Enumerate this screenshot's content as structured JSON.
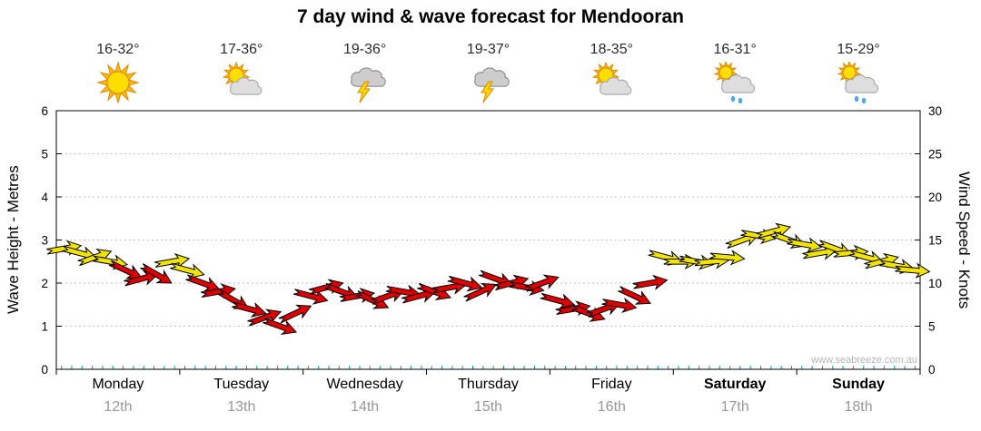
{
  "chart_data": {
    "type": "scatter",
    "subtype": "wind-arrow-forecast",
    "title": "7 day wind & wave forecast for Mendooran",
    "watermark": "www.seabreeze.com.au",
    "left_axis": {
      "label": "Wave Height - Metres",
      "min": 0,
      "max": 6,
      "ticks": [
        0,
        1,
        2,
        3,
        4,
        5,
        6
      ]
    },
    "right_axis": {
      "label": "Wind Speed - Knots",
      "min": 0,
      "max": 30,
      "ticks": [
        0,
        5,
        10,
        15,
        20,
        25,
        30
      ]
    },
    "grid": true,
    "legend": "none",
    "days": [
      {
        "name": "Monday",
        "date": "12th",
        "temp": "16-32°",
        "icon": "sunny",
        "bold": false
      },
      {
        "name": "Tuesday",
        "date": "13th",
        "temp": "17-36°",
        "icon": "partly-cloudy",
        "bold": false
      },
      {
        "name": "Wednesday",
        "date": "14th",
        "temp": "19-36°",
        "icon": "storm",
        "bold": false
      },
      {
        "name": "Thursday",
        "date": "15th",
        "temp": "19-37°",
        "icon": "storm",
        "bold": false
      },
      {
        "name": "Friday",
        "date": "16th",
        "temp": "18-35°",
        "icon": "partly-cloudy",
        "bold": false
      },
      {
        "name": "Saturday",
        "date": "17th",
        "temp": "16-31°",
        "icon": "showers",
        "bold": true
      },
      {
        "name": "Sunday",
        "date": "18th",
        "temp": "15-29°",
        "icon": "showers",
        "bold": true
      }
    ],
    "wind": {
      "points_per_day": 8,
      "units": "knots",
      "knots": [
        14,
        13.5,
        13,
        12.5,
        11.5,
        10.5,
        11,
        12.5,
        11.5,
        10,
        9,
        8,
        7,
        6,
        5,
        6.5,
        8.5,
        9.5,
        9,
        8.5,
        8,
        8.5,
        9,
        8.5,
        9,
        9.5,
        10,
        9,
        10.5,
        10,
        9.5,
        10,
        8,
        7,
        6.5,
        7,
        7.5,
        8.5,
        10,
        13,
        12.5,
        12.5,
        12.5,
        13,
        15,
        15.5,
        16,
        15,
        14.5,
        13.5,
        14,
        13.5,
        13,
        12.5,
        12,
        11.5
      ],
      "colors": [
        "y",
        "y",
        "y",
        "y",
        "r",
        "r",
        "r",
        "y",
        "y",
        "r",
        "r",
        "r",
        "r",
        "r",
        "r",
        "r",
        "r",
        "r",
        "r",
        "r",
        "r",
        "r",
        "r",
        "r",
        "r",
        "r",
        "r",
        "r",
        "r",
        "r",
        "r",
        "r",
        "r",
        "r",
        "r",
        "r",
        "r",
        "r",
        "r",
        "y",
        "y",
        "y",
        "y",
        "y",
        "y",
        "y",
        "y",
        "y",
        "y",
        "y",
        "y",
        "y",
        "y",
        "y",
        "y",
        "y"
      ],
      "angles": [
        -10,
        15,
        -20,
        10,
        25,
        -15,
        30,
        -10,
        15,
        20,
        -10,
        30,
        15,
        -20,
        20,
        -25,
        15,
        -15,
        20,
        -10,
        25,
        -20,
        10,
        -15,
        20,
        -10,
        15,
        -25,
        20,
        -15,
        10,
        -20,
        15,
        -10,
        20,
        -20,
        10,
        25,
        -10,
        15,
        0,
        10,
        -5,
        5,
        -20,
        10,
        -15,
        20,
        10,
        -10,
        20,
        -5,
        15,
        -15,
        10,
        5
      ]
    },
    "palette": {
      "yellow": "#F3E300",
      "red": "#DE0000",
      "arrow_outline": "#000000",
      "tick_teal": "#00A0A0",
      "grid": "#C0C0C0",
      "axis": "#000000",
      "date_gray": "#979797",
      "watermark_gray": "#B5B5B5"
    }
  }
}
